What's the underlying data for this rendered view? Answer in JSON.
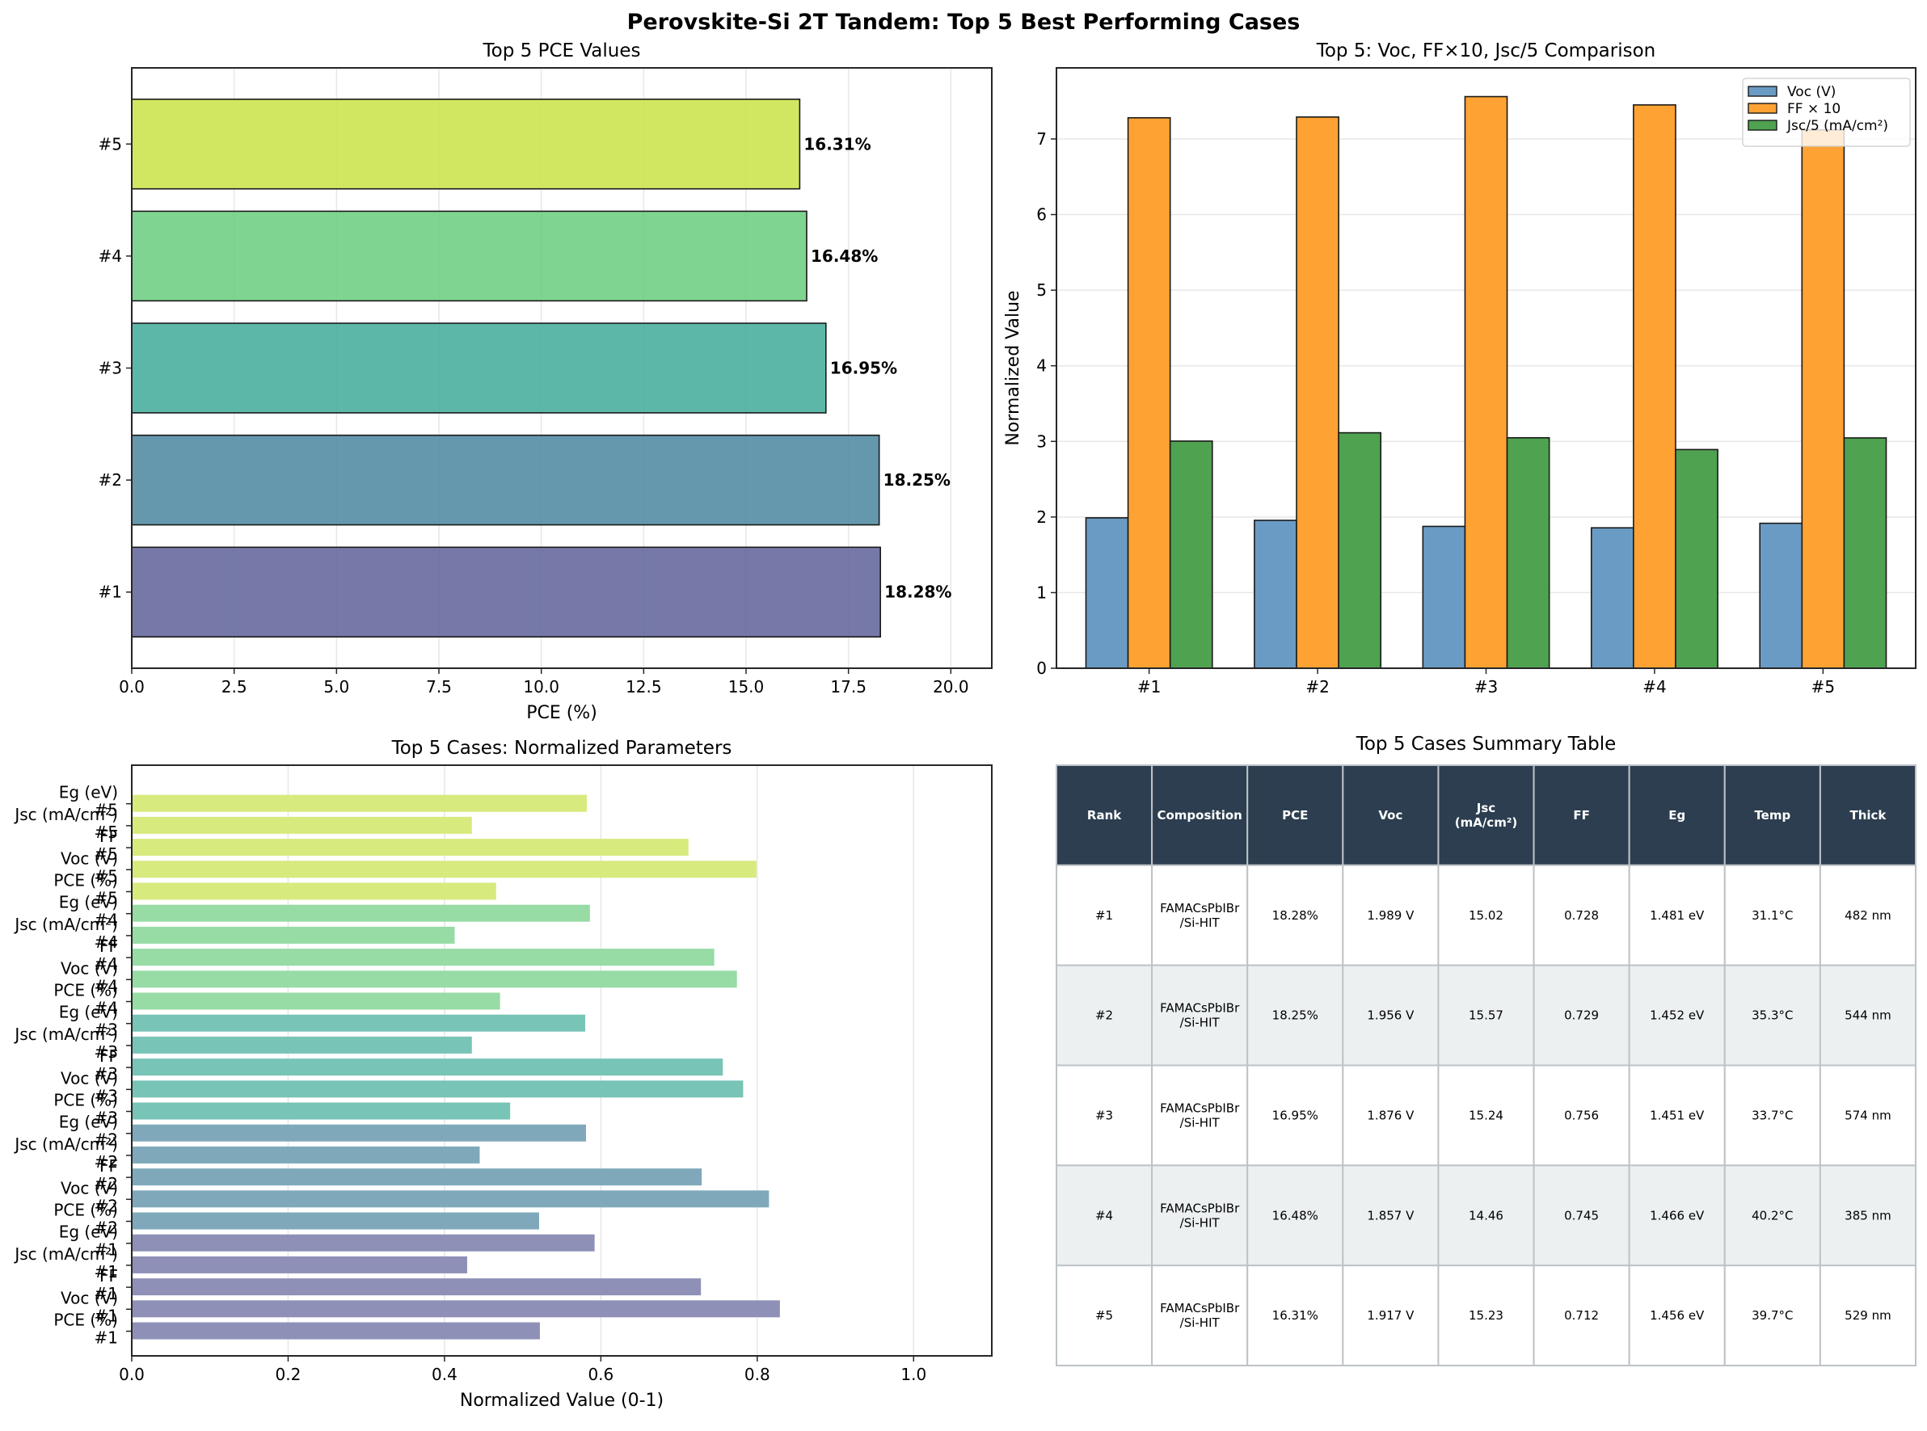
{
  "figure": {
    "suptitle": "Perovskite-Si 2T Tandem: Top 5 Best Performing Cases"
  },
  "chart_data": [
    {
      "id": "pce",
      "type": "bar",
      "orientation": "horizontal",
      "title": "Top 5 PCE Values",
      "xlabel": "PCE (%)",
      "ylabel": "",
      "categories": [
        "#1",
        "#2",
        "#3",
        "#4",
        "#5"
      ],
      "values": [
        18.28,
        18.25,
        16.95,
        16.48,
        16.31
      ],
      "data_labels": [
        "18.28%",
        "18.25%",
        "16.95%",
        "16.48%",
        "16.31%"
      ],
      "colors": [
        "#5e6199",
        "#4b869f",
        "#40aa9a",
        "#6acd7e",
        "#c9e347"
      ],
      "xlim": [
        0,
        21.0
      ],
      "xticks": [
        0,
        2.5,
        5,
        7.5,
        10,
        12.5,
        15,
        17.5,
        20
      ],
      "xtick_labels": [
        "0.0",
        "2.5",
        "5.0",
        "7.5",
        "10.0",
        "12.5",
        "15.0",
        "17.5",
        "20.0"
      ],
      "grid": "x"
    },
    {
      "id": "comparison",
      "type": "bar",
      "orientation": "vertical",
      "title": "Top 5: Voc, FF×10, Jsc/5 Comparison",
      "xlabel": "",
      "ylabel": "Normalized Value",
      "categories": [
        "#1",
        "#2",
        "#3",
        "#4",
        "#5"
      ],
      "series": [
        {
          "name": "Voc (V)",
          "color": "#6a9bc4",
          "values": [
            1.989,
            1.956,
            1.876,
            1.857,
            1.917
          ]
        },
        {
          "name": "FF × 10",
          "color": "#ffa234",
          "values": [
            7.28,
            7.29,
            7.56,
            7.45,
            7.12
          ]
        },
        {
          "name": "Jsc/5 (mA/cm²)",
          "color": "#4fa24f",
          "values": [
            3.004,
            3.114,
            3.048,
            2.892,
            3.046
          ]
        }
      ],
      "ylim": [
        0,
        7.94
      ],
      "yticks": [
        0,
        1,
        2,
        3,
        4,
        5,
        6,
        7
      ],
      "legend": "top-right",
      "grid": "y"
    },
    {
      "id": "normalized",
      "type": "bar",
      "orientation": "horizontal",
      "title": "Top 5 Cases: Normalized Parameters",
      "xlabel": "Normalized Value (0-1)",
      "ylabel": "",
      "parameters": [
        "PCE (%)",
        "Voc (V)",
        "FF",
        "Jsc (mA/cm²)",
        "Eg (eV)"
      ],
      "groups": [
        {
          "case": "#1",
          "color": "#8f90b7",
          "values": [
            0.522,
            0.829,
            0.728,
            0.429,
            0.592
          ]
        },
        {
          "case": "#2",
          "color": "#7fa9bb",
          "values": [
            0.521,
            0.815,
            0.729,
            0.445,
            0.581
          ]
        },
        {
          "case": "#3",
          "color": "#78c4b6",
          "values": [
            0.484,
            0.782,
            0.756,
            0.435,
            0.58
          ]
        },
        {
          "case": "#4",
          "color": "#97dba5",
          "values": [
            0.471,
            0.774,
            0.745,
            0.413,
            0.586
          ]
        },
        {
          "case": "#5",
          "color": "#d7ea7d",
          "values": [
            0.466,
            0.799,
            0.712,
            0.435,
            0.582
          ]
        }
      ],
      "xlim": [
        0,
        1.1
      ],
      "xticks": [
        0,
        0.2,
        0.4,
        0.6,
        0.8,
        1.0
      ],
      "xtick_labels": [
        "0.0",
        "0.2",
        "0.4",
        "0.6",
        "0.8",
        "1.0"
      ],
      "grid": "x"
    },
    {
      "id": "summary",
      "type": "table",
      "title": "Top 5 Cases Summary Table",
      "columns": [
        "Rank",
        "Composition",
        "PCE",
        "Voc",
        "Jsc\n(mA/cm²)",
        "FF",
        "Eg",
        "Temp",
        "Thick"
      ],
      "rows": [
        [
          "#1",
          "FAMACsPbIBr\n/Si-HIT",
          "18.28%",
          "1.989 V",
          "15.02",
          "0.728",
          "1.481 eV",
          "31.1°C",
          "482 nm"
        ],
        [
          "#2",
          "FAMACsPbIBr\n/Si-HIT",
          "18.25%",
          "1.956 V",
          "15.57",
          "0.729",
          "1.452 eV",
          "35.3°C",
          "544 nm"
        ],
        [
          "#3",
          "FAMACsPbIBr\n/Si-HIT",
          "16.95%",
          "1.876 V",
          "15.24",
          "0.756",
          "1.451 eV",
          "33.7°C",
          "574 nm"
        ],
        [
          "#4",
          "FAMACsPbIBr\n/Si-HIT",
          "16.48%",
          "1.857 V",
          "14.46",
          "0.745",
          "1.466 eV",
          "40.2°C",
          "385 nm"
        ],
        [
          "#5",
          "FAMACsPbIBr\n/Si-HIT",
          "16.31%",
          "1.917 V",
          "15.23",
          "0.712",
          "1.456 eV",
          "39.7°C",
          "529 nm"
        ]
      ],
      "header_color": "#2c3e50",
      "stripe_color": "#ecf0f1",
      "border_color": "#bdc3c7"
    }
  ]
}
